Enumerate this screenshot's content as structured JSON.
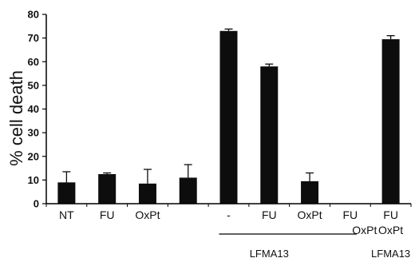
{
  "chart_data": {
    "type": "bar",
    "title": "",
    "xlabel": "",
    "ylabel": "% cell death",
    "ylim": [
      0,
      80
    ],
    "yticks": [
      0,
      10,
      20,
      30,
      40,
      50,
      60,
      70,
      80
    ],
    "grid": false,
    "legend": "none",
    "categories": [
      "NT",
      "FU",
      "OxPt",
      "",
      "-",
      "FU",
      "OxPt",
      "FU OxPt",
      "FU OxPt"
    ],
    "tick_labels": [
      [
        "NT"
      ],
      [
        "FU"
      ],
      [
        "OxPt"
      ],
      [
        ""
      ],
      [
        "-"
      ],
      [
        "FU"
      ],
      [
        "OxPt"
      ],
      [
        "FU",
        "OxPt"
      ],
      [
        "FU",
        "OxPt"
      ]
    ],
    "values": [
      9,
      12.5,
      8.5,
      11,
      73,
      58,
      9.5,
      0,
      69.5
    ],
    "errors": [
      4.5,
      0.5,
      6,
      5.5,
      0.8,
      1,
      3.5,
      0,
      1.5
    ],
    "group_labels": [
      "LFMA13",
      "LFMA13"
    ],
    "colors": {
      "bar": "#0d0d0d",
      "axis": "#000000",
      "text": "#111111"
    }
  }
}
